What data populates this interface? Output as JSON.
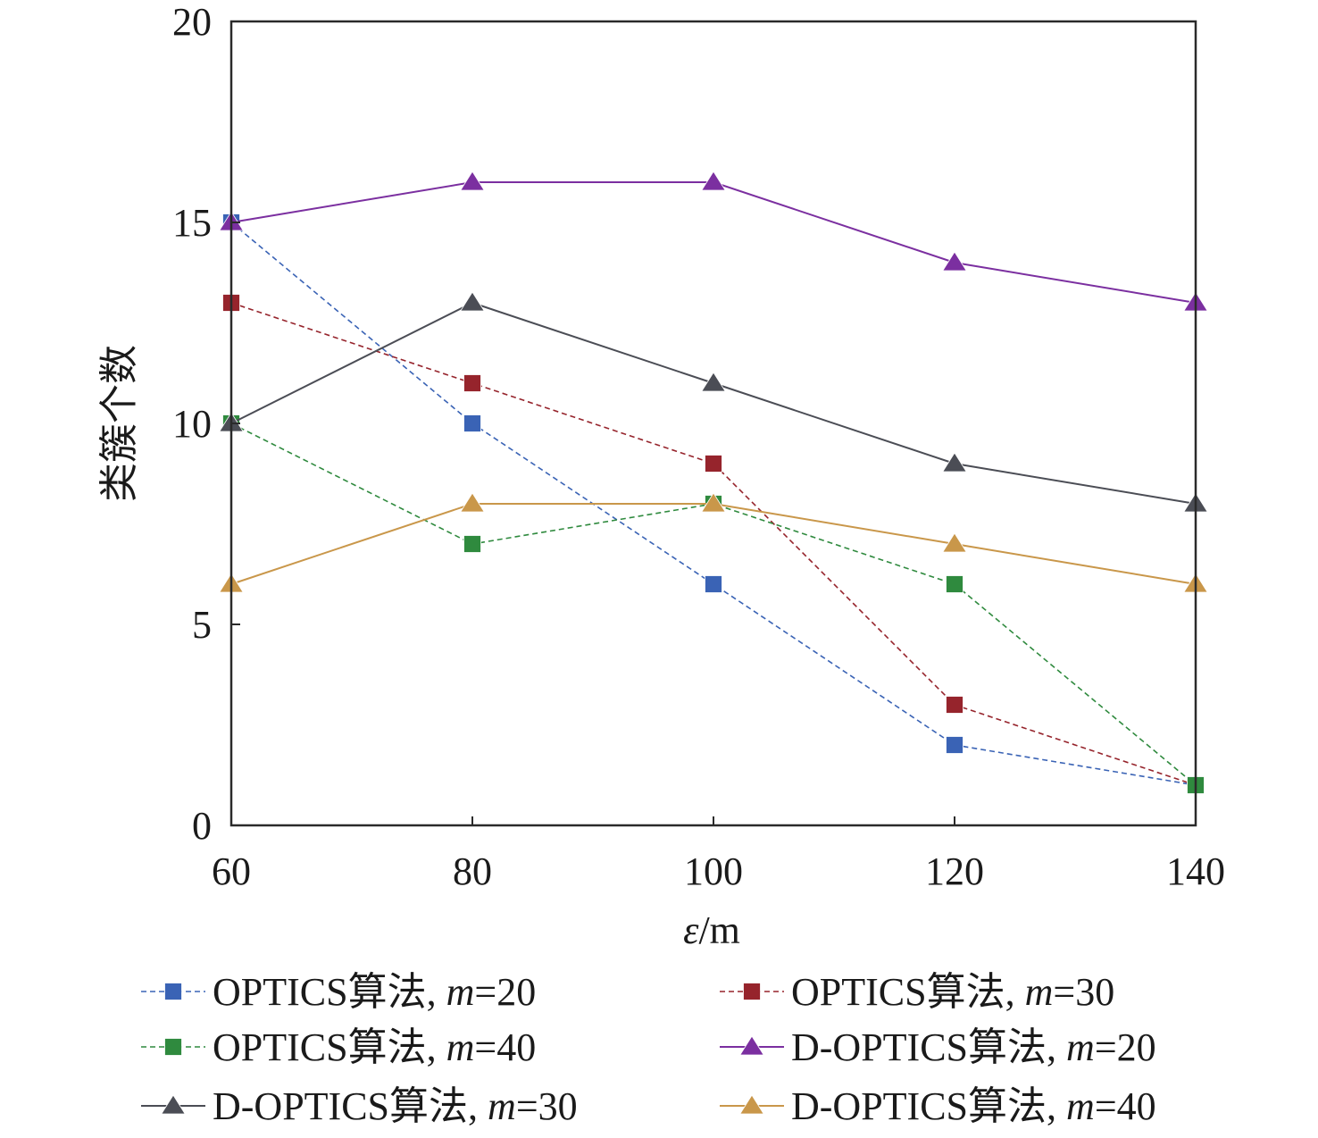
{
  "chart_data": {
    "type": "line",
    "title": "",
    "xlabel": "ε/m",
    "ylabel": "类簇个数",
    "x": [
      60,
      80,
      100,
      120,
      140
    ],
    "xlim": [
      60,
      140
    ],
    "ylim": [
      0,
      20
    ],
    "yticks": [
      0,
      5,
      10,
      15,
      20
    ],
    "grid": false,
    "legend_position": "bottom",
    "series": [
      {
        "name": "OPTICS算法, m=20",
        "values": [
          15,
          10,
          6,
          2,
          1
        ],
        "color": "#3a63b5",
        "marker": "square",
        "dashed": true
      },
      {
        "name": "OPTICS算法, m=30",
        "values": [
          13,
          11,
          9,
          3,
          1
        ],
        "color": "#96242c",
        "marker": "square",
        "dashed": true
      },
      {
        "name": "OPTICS算法, m=40",
        "values": [
          10,
          7,
          8,
          6,
          1
        ],
        "color": "#2f8a3e",
        "marker": "square",
        "dashed": true
      },
      {
        "name": "D-OPTICS算法, m=20",
        "values": [
          15,
          16,
          16,
          14,
          13
        ],
        "color": "#7b2fa0",
        "marker": "triangle",
        "dashed": false
      },
      {
        "name": "D-OPTICS算法, m=30",
        "values": [
          10,
          13,
          11,
          9,
          8
        ],
        "color": "#4b4d55",
        "marker": "triangle",
        "dashed": false
      },
      {
        "name": "D-OPTICS算法, m=40",
        "values": [
          6,
          8,
          8,
          7,
          6
        ],
        "color": "#c9974a",
        "marker": "triangle",
        "dashed": false
      }
    ]
  }
}
